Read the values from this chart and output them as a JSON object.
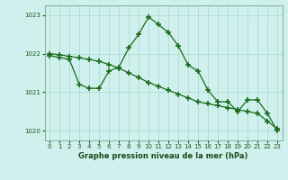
{
  "line1_x": [
    0,
    1,
    2,
    3,
    4,
    5,
    6,
    7,
    8,
    9,
    10,
    11,
    12,
    13,
    14,
    15,
    16,
    17,
    18,
    19,
    20,
    21,
    22,
    23
  ],
  "line1_y": [
    1021.95,
    1021.9,
    1021.85,
    1021.2,
    1021.1,
    1021.1,
    1021.55,
    1021.65,
    1022.15,
    1022.5,
    1022.95,
    1022.75,
    1022.55,
    1022.2,
    1021.7,
    1021.55,
    1021.05,
    1020.75,
    1020.75,
    1020.5,
    1020.8,
    1020.8,
    1020.45,
    1020.0
  ],
  "line2_x": [
    0,
    1,
    2,
    3,
    4,
    5,
    6,
    7,
    8,
    9,
    10,
    11,
    12,
    13,
    14,
    15,
    16,
    17,
    18,
    19,
    20,
    21,
    22,
    23
  ],
  "line2_y": [
    1022.0,
    1021.97,
    1021.93,
    1021.89,
    1021.85,
    1021.8,
    1021.72,
    1021.62,
    1021.5,
    1021.38,
    1021.25,
    1021.15,
    1021.05,
    1020.95,
    1020.85,
    1020.75,
    1020.7,
    1020.65,
    1020.6,
    1020.55,
    1020.5,
    1020.45,
    1020.25,
    1020.05
  ],
  "line_color": "#1a6b1a",
  "bg_color": "#cff0ec",
  "grid_color": "#aaddd5",
  "xlabel": "Graphe pression niveau de la mer (hPa)",
  "ylim": [
    1019.75,
    1023.25
  ],
  "xlim": [
    -0.5,
    23.5
  ],
  "yticks": [
    1020,
    1021,
    1022,
    1023
  ],
  "xticks": [
    0,
    1,
    2,
    3,
    4,
    5,
    6,
    7,
    8,
    9,
    10,
    11,
    12,
    13,
    14,
    15,
    16,
    17,
    18,
    19,
    20,
    21,
    22,
    23
  ]
}
